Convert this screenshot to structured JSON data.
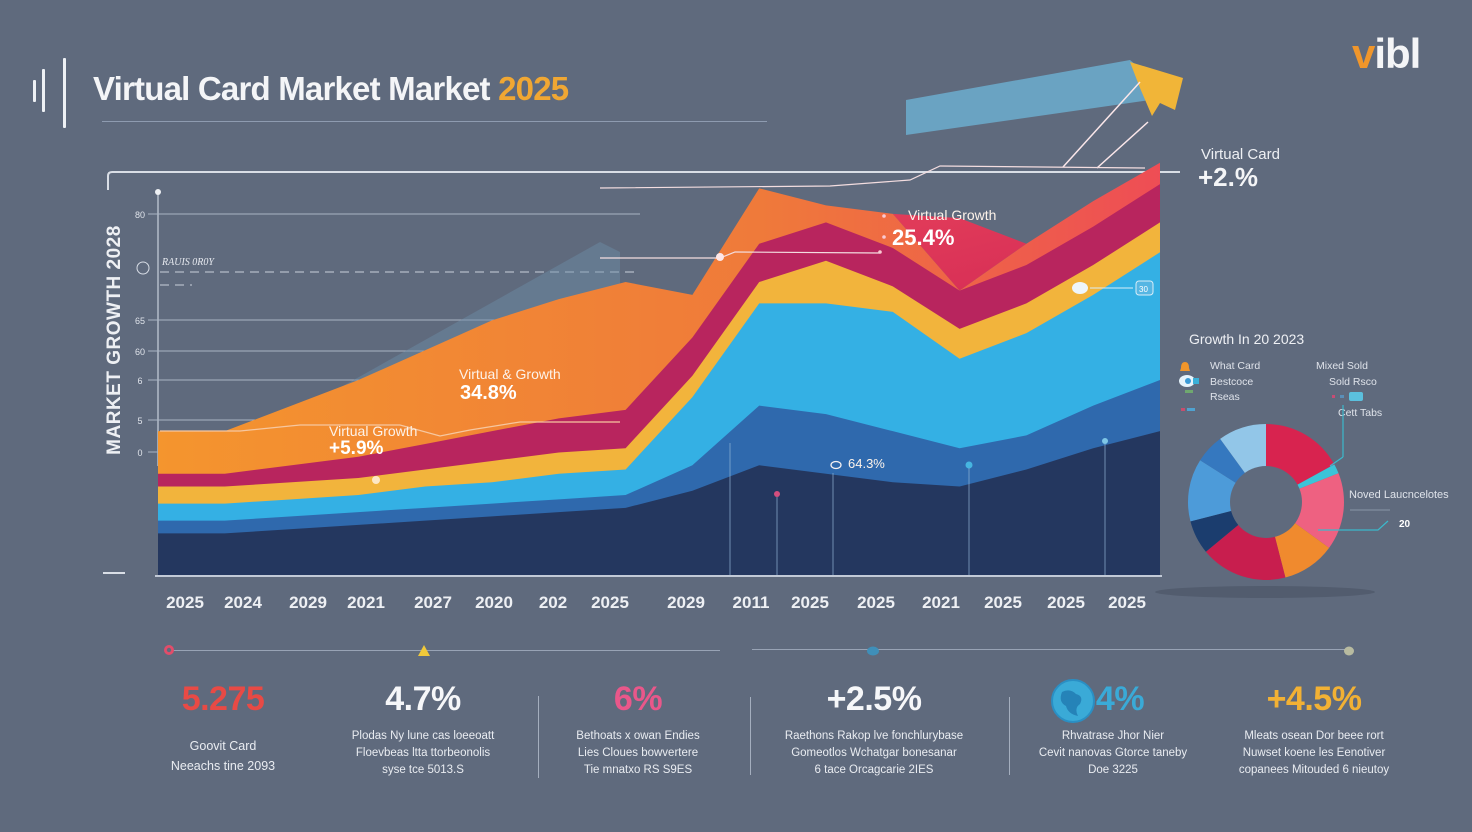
{
  "header": {
    "title_main": "Virtual Card Market Market",
    "title_year": "2025",
    "logo_accent": "v",
    "logo_rest": "ibl"
  },
  "callout": {
    "label": "Virtual Card",
    "value": "+2.%"
  },
  "chart_data": {
    "type": "area",
    "title": "Virtual Card Market Market 2025",
    "xlabel": "",
    "ylabel": "MARKET GROWTH 2028",
    "grid": true,
    "reference_line_label": "RAUIS 0R0Y",
    "categories": [
      "2025",
      "2024",
      "2029",
      "2021",
      "2027",
      "2020",
      "202",
      "2025",
      "2029",
      "2011",
      "2025",
      "2025",
      "2021",
      "2025",
      "2025",
      "2025"
    ],
    "ylim": [
      0,
      100
    ],
    "series": [
      {
        "name": "Navy base",
        "color": "#24375f",
        "values": [
          10,
          10,
          11,
          12,
          13,
          14,
          15,
          16,
          20,
          26,
          24,
          22,
          21,
          25,
          30,
          34
        ]
      },
      {
        "name": "Royal blue",
        "color": "#2f69ad",
        "values": [
          3,
          3,
          3,
          3,
          3,
          3,
          3,
          3,
          6,
          14,
          14,
          12,
          9,
          8,
          10,
          12
        ]
      },
      {
        "name": "Sky blue",
        "color": "#34b0e4",
        "values": [
          4,
          4,
          4,
          4,
          5,
          5,
          6,
          6,
          16,
          24,
          26,
          28,
          21,
          24,
          26,
          30
        ]
      },
      {
        "name": "Yellow",
        "color": "#f2b43c",
        "values": [
          4,
          4,
          4,
          4,
          4,
          5,
          5,
          5,
          5,
          5,
          10,
          6,
          7,
          7,
          7,
          7
        ]
      },
      {
        "name": "Magenta",
        "color": "#b8255e",
        "values": [
          3,
          3,
          4,
          5,
          6,
          7,
          8,
          9,
          9,
          9,
          9,
          9,
          9,
          9,
          9,
          9
        ]
      },
      {
        "name": "Orange-Red",
        "color": "#ee6a3c",
        "values": [
          10,
          10,
          14,
          18,
          22,
          26,
          28,
          30,
          10,
          13,
          4,
          8,
          0,
          5,
          6,
          5
        ]
      }
    ],
    "annotations": [
      {
        "label": "Virtual Growth",
        "value": "+5.9%"
      },
      {
        "label": "Virtual & Growth",
        "value": "34.8%"
      },
      {
        "label": "Virtual Growth",
        "value": "25.4%"
      },
      {
        "label": "",
        "value": "64.3%"
      },
      {
        "label": "",
        "value": "30"
      }
    ],
    "ytick_labels": [
      "80",
      "0",
      "65",
      "60",
      "6",
      "5",
      "0"
    ]
  },
  "pie": {
    "title": "Growth In 20 2023",
    "legend_left": [
      "What Card",
      "Bestcoce",
      "Rseas"
    ],
    "legend_right": [
      "Mixed Sold",
      "Sold Rsco",
      "Cett Tabs"
    ],
    "callout_label": "Noved Laucncelotes",
    "callout_value": "20",
    "slices": [
      {
        "label": "Red",
        "color": "#d8234f",
        "value": 17
      },
      {
        "label": "Teal sliver",
        "color": "#3bc4d8",
        "value": 2
      },
      {
        "label": "Pink",
        "color": "#ee6181",
        "value": 16
      },
      {
        "label": "Orange",
        "color": "#f08a2e",
        "value": 11
      },
      {
        "label": "Crimson",
        "color": "#c81e4e",
        "value": 18
      },
      {
        "label": "Navy",
        "color": "#1b3d6e",
        "value": 7
      },
      {
        "label": "Blue",
        "color": "#4d9bd9",
        "value": 13
      },
      {
        "label": "Mid blue",
        "color": "#3578bf",
        "value": 6
      },
      {
        "label": "Light blue",
        "color": "#92c6e8",
        "value": 10
      }
    ]
  },
  "stats": [
    {
      "value": "5.275",
      "color": "#e84a45",
      "desc": [
        "Goovit Card",
        "Neeachs tine 2093"
      ]
    },
    {
      "value": "4.7%",
      "color": "#f6f7f9",
      "desc": [
        "Plodas Ny lune cas loeeoatt",
        "Floevbeas ltta ttorbeonolis",
        "syse tce 5013.S"
      ]
    },
    {
      "value": "6%",
      "color": "#e9578a",
      "desc": [
        "Bethoats x owan Endies",
        "Lies Cloues bowvertere",
        "Tie mnatxo RS S9ES"
      ]
    },
    {
      "value": "+2.5%",
      "color": "#f6f7f9",
      "desc": [
        "Raethons Rakop lve fonchlurybase",
        "Gomeotlos Wchatgar bonesanar",
        "6 tace Orcagcarie 2IES"
      ]
    },
    {
      "value": "4%",
      "color": "#3aaad7",
      "desc": [
        "Rhvatrase Jhor Nier",
        "Cevit nanovas Gtorce taneby",
        "Doe 3225"
      ]
    },
    {
      "value": "+4.5%",
      "color": "#f2b134",
      "desc": [
        "Mleats osean Dor beee rort",
        "Nuwset koene les Eenotiver",
        "copanees Mitouded 6 nieutoy"
      ]
    }
  ],
  "x_axis": {
    "labels": [
      "2025",
      "2024",
      "2029",
      "2021",
      "2027",
      "2020",
      "202",
      "2025",
      "2029",
      "2011",
      "2025",
      "2025",
      "2021",
      "2025",
      "2025",
      "2025"
    ]
  }
}
